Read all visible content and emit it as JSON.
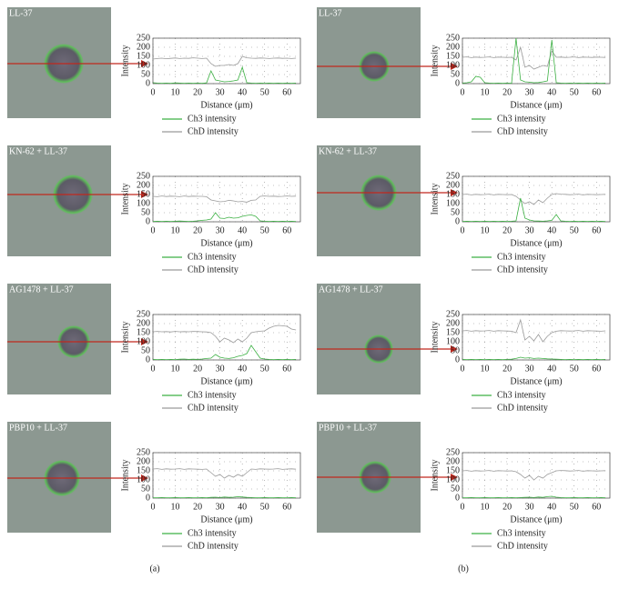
{
  "chart_data": [
    {
      "type": "line",
      "title": "LL-37",
      "xlabel": "Distance (μm)",
      "ylabel": "Intensity",
      "x": [
        0,
        2,
        4,
        6,
        8,
        10,
        12,
        14,
        16,
        18,
        20,
        22,
        24,
        26,
        28,
        30,
        32,
        34,
        36,
        38,
        40,
        42,
        44,
        46,
        48,
        50,
        52,
        54,
        56,
        58,
        60,
        62,
        64
      ],
      "xlim": [
        0,
        66
      ],
      "xticks": [
        0,
        10,
        20,
        30,
        40,
        50,
        60
      ],
      "ylim": [
        0,
        250
      ],
      "yticks": [
        0,
        50,
        100,
        150,
        200,
        250
      ],
      "grid": true,
      "series": [
        {
          "name": "Ch3 intensity",
          "color": "#3cb043",
          "values": [
            5,
            3,
            2,
            3,
            2,
            4,
            3,
            2,
            3,
            2,
            3,
            2,
            4,
            70,
            20,
            15,
            10,
            12,
            15,
            20,
            90,
            5,
            3,
            2,
            3,
            2,
            3,
            2,
            3,
            2,
            3,
            2,
            3
          ]
        },
        {
          "name": "ChD intensity",
          "color": "#9a9a9a",
          "values": [
            135,
            138,
            140,
            137,
            139,
            141,
            138,
            140,
            139,
            142,
            140,
            138,
            140,
            110,
            95,
            100,
            100,
            105,
            100,
            110,
            150,
            142,
            140,
            139,
            141,
            140,
            138,
            140,
            141,
            139,
            140,
            138,
            140
          ]
        }
      ]
    },
    {
      "type": "line",
      "title": "KN-62 + LL-37",
      "xlabel": "Distance (μm)",
      "ylabel": "Intensity",
      "x": [
        0,
        2,
        4,
        6,
        8,
        10,
        12,
        14,
        16,
        18,
        20,
        22,
        24,
        26,
        28,
        30,
        32,
        34,
        36,
        38,
        40,
        42,
        44,
        46,
        48,
        50,
        52,
        54,
        56,
        58,
        60,
        62,
        64
      ],
      "xlim": [
        0,
        66
      ],
      "xticks": [
        0,
        10,
        20,
        30,
        40,
        50,
        60
      ],
      "ylim": [
        0,
        250
      ],
      "yticks": [
        0,
        50,
        100,
        150,
        200,
        250
      ],
      "grid": true,
      "series": [
        {
          "name": "Ch3 intensity",
          "color": "#3cb043",
          "values": [
            2,
            3,
            2,
            3,
            2,
            3,
            4,
            3,
            2,
            3,
            5,
            8,
            10,
            15,
            50,
            20,
            18,
            25,
            20,
            22,
            30,
            35,
            38,
            30,
            5,
            3,
            2,
            3,
            2,
            3,
            2,
            3,
            2
          ]
        },
        {
          "name": "ChD intensity",
          "color": "#9a9a9a",
          "values": [
            140,
            138,
            142,
            139,
            141,
            140,
            138,
            142,
            139,
            141,
            140,
            140,
            138,
            120,
            115,
            110,
            112,
            118,
            115,
            110,
            112,
            108,
            118,
            120,
            140,
            142,
            140,
            141,
            139,
            140,
            142,
            140,
            141
          ]
        }
      ]
    },
    {
      "type": "line",
      "title": "AG1478 + LL-37",
      "xlabel": "Distance (μm)",
      "ylabel": "Intensity",
      "x": [
        0,
        2,
        4,
        6,
        8,
        10,
        12,
        14,
        16,
        18,
        20,
        22,
        24,
        26,
        28,
        30,
        32,
        34,
        36,
        38,
        40,
        42,
        44,
        46,
        48,
        50,
        52,
        54,
        56,
        58,
        60,
        62,
        64
      ],
      "xlim": [
        0,
        66
      ],
      "xticks": [
        0,
        10,
        20,
        30,
        40,
        50,
        60
      ],
      "ylim": [
        0,
        250
      ],
      "yticks": [
        0,
        50,
        100,
        150,
        200,
        250
      ],
      "grid": true,
      "series": [
        {
          "name": "Ch3 intensity",
          "color": "#3cb043",
          "values": [
            3,
            2,
            3,
            2,
            3,
            2,
            4,
            5,
            3,
            4,
            3,
            5,
            8,
            10,
            30,
            15,
            10,
            8,
            12,
            20,
            25,
            35,
            80,
            45,
            10,
            5,
            3,
            2,
            3,
            2,
            3,
            2,
            3
          ]
        },
        {
          "name": "ChD intensity",
          "color": "#9a9a9a",
          "values": [
            155,
            157,
            155,
            156,
            154,
            157,
            155,
            156,
            155,
            157,
            156,
            155,
            154,
            150,
            130,
            100,
            120,
            110,
            95,
            115,
            100,
            120,
            150,
            155,
            158,
            160,
            175,
            185,
            190,
            188,
            185,
            170,
            165
          ]
        }
      ]
    },
    {
      "type": "line",
      "title": "PBP10 + LL-37",
      "xlabel": "Distance (μm)",
      "ylabel": "Intensity",
      "x": [
        0,
        2,
        4,
        6,
        8,
        10,
        12,
        14,
        16,
        18,
        20,
        22,
        24,
        26,
        28,
        30,
        32,
        34,
        36,
        38,
        40,
        42,
        44,
        46,
        48,
        50,
        52,
        54,
        56,
        58,
        60,
        62,
        64
      ],
      "xlim": [
        0,
        66
      ],
      "xticks": [
        0,
        10,
        20,
        30,
        40,
        50,
        60
      ],
      "ylim": [
        0,
        250
      ],
      "yticks": [
        0,
        50,
        100,
        150,
        200,
        250
      ],
      "grid": true,
      "series": [
        {
          "name": "Ch3 intensity",
          "color": "#3cb043",
          "values": [
            2,
            2,
            3,
            2,
            2,
            3,
            2,
            2,
            3,
            2,
            2,
            3,
            2,
            4,
            5,
            3,
            6,
            4,
            5,
            8,
            6,
            4,
            3,
            2,
            2,
            3,
            2,
            2,
            3,
            2,
            2,
            3,
            2
          ]
        },
        {
          "name": "ChD intensity",
          "color": "#9a9a9a",
          "values": [
            160,
            162,
            158,
            161,
            159,
            160,
            162,
            158,
            161,
            160,
            159,
            158,
            160,
            140,
            120,
            130,
            110,
            125,
            115,
            130,
            120,
            140,
            160,
            158,
            161,
            160,
            159,
            160,
            162,
            158,
            160,
            161,
            159
          ]
        }
      ]
    },
    {
      "type": "line",
      "title": "LL-37",
      "xlabel": "Distance (μm)",
      "ylabel": "Intensity",
      "x": [
        0,
        2,
        4,
        6,
        8,
        10,
        12,
        14,
        16,
        18,
        20,
        22,
        24,
        26,
        28,
        30,
        32,
        34,
        36,
        38,
        40,
        42,
        44,
        46,
        48,
        50,
        52,
        54,
        56,
        58,
        60,
        62,
        64
      ],
      "xlim": [
        0,
        66
      ],
      "xticks": [
        0,
        10,
        20,
        30,
        40,
        50,
        60
      ],
      "ylim": [
        0,
        250
      ],
      "yticks": [
        0,
        50,
        100,
        150,
        200,
        250
      ],
      "grid": true,
      "series": [
        {
          "name": "Ch3 intensity",
          "color": "#3cb043",
          "values": [
            3,
            5,
            10,
            40,
            35,
            5,
            3,
            2,
            3,
            2,
            3,
            2,
            250,
            20,
            10,
            8,
            5,
            6,
            10,
            15,
            240,
            5,
            3,
            2,
            3,
            2,
            3,
            2,
            3,
            2,
            3,
            2,
            3
          ]
        },
        {
          "name": "ChD intensity",
          "color": "#9a9a9a",
          "values": [
            145,
            147,
            143,
            146,
            144,
            145,
            147,
            143,
            146,
            145,
            144,
            145,
            130,
            200,
            90,
            100,
            80,
            90,
            100,
            95,
            180,
            145,
            146,
            144,
            145,
            147,
            143,
            146,
            145,
            144,
            146,
            145,
            144
          ]
        }
      ]
    },
    {
      "type": "line",
      "title": "KN-62 + LL-37",
      "xlabel": "Distance (μm)",
      "ylabel": "Intensity",
      "x": [
        0,
        2,
        4,
        6,
        8,
        10,
        12,
        14,
        16,
        18,
        20,
        22,
        24,
        26,
        28,
        30,
        32,
        34,
        36,
        38,
        40,
        42,
        44,
        46,
        48,
        50,
        52,
        54,
        56,
        58,
        60,
        62,
        64
      ],
      "xlim": [
        0,
        66
      ],
      "xticks": [
        0,
        10,
        20,
        30,
        40,
        50,
        60
      ],
      "ylim": [
        0,
        250
      ],
      "yticks": [
        0,
        50,
        100,
        150,
        200,
        250
      ],
      "grid": true,
      "series": [
        {
          "name": "Ch3 intensity",
          "color": "#3cb043",
          "values": [
            2,
            3,
            2,
            3,
            2,
            3,
            2,
            3,
            2,
            3,
            2,
            3,
            5,
            130,
            20,
            10,
            5,
            4,
            3,
            5,
            8,
            40,
            5,
            3,
            2,
            3,
            2,
            3,
            2,
            3,
            2,
            3,
            2
          ]
        },
        {
          "name": "ChD intensity",
          "color": "#9a9a9a",
          "values": [
            150,
            152,
            148,
            151,
            149,
            150,
            152,
            148,
            151,
            150,
            149,
            150,
            140,
            120,
            100,
            110,
            95,
            120,
            105,
            130,
            150,
            155,
            152,
            151,
            149,
            150,
            152,
            148,
            151,
            150,
            149,
            150,
            151
          ]
        }
      ]
    },
    {
      "type": "line",
      "title": "AG1478 + LL-37",
      "xlabel": "Distance (μm)",
      "ylabel": "Intensity",
      "x": [
        0,
        2,
        4,
        6,
        8,
        10,
        12,
        14,
        16,
        18,
        20,
        22,
        24,
        26,
        28,
        30,
        32,
        34,
        36,
        38,
        40,
        42,
        44,
        46,
        48,
        50,
        52,
        54,
        56,
        58,
        60,
        62,
        64
      ],
      "xlim": [
        0,
        66
      ],
      "xticks": [
        0,
        10,
        20,
        30,
        40,
        50,
        60
      ],
      "ylim": [
        0,
        250
      ],
      "yticks": [
        0,
        50,
        100,
        150,
        200,
        250
      ],
      "grid": true,
      "series": [
        {
          "name": "Ch3 intensity",
          "color": "#3cb043",
          "values": [
            3,
            2,
            3,
            2,
            3,
            2,
            3,
            2,
            3,
            2,
            3,
            4,
            8,
            15,
            10,
            12,
            8,
            10,
            8,
            6,
            5,
            4,
            3,
            2,
            3,
            2,
            3,
            2,
            3,
            2,
            3,
            2,
            3
          ]
        },
        {
          "name": "ChD intensity",
          "color": "#9a9a9a",
          "values": [
            160,
            162,
            158,
            161,
            159,
            160,
            162,
            158,
            161,
            160,
            159,
            158,
            150,
            220,
            110,
            130,
            105,
            140,
            100,
            130,
            150,
            158,
            161,
            160,
            159,
            160,
            162,
            158,
            161,
            160,
            159,
            158,
            160
          ]
        }
      ]
    },
    {
      "type": "line",
      "title": "PBP10 + LL-37",
      "xlabel": "Distance (μm)",
      "ylabel": "Intensity",
      "x": [
        0,
        2,
        4,
        6,
        8,
        10,
        12,
        14,
        16,
        18,
        20,
        22,
        24,
        26,
        28,
        30,
        32,
        34,
        36,
        38,
        40,
        42,
        44,
        46,
        48,
        50,
        52,
        54,
        56,
        58,
        60,
        62,
        64
      ],
      "xlim": [
        0,
        66
      ],
      "xticks": [
        0,
        10,
        20,
        30,
        40,
        50,
        60
      ],
      "ylim": [
        0,
        250
      ],
      "yticks": [
        0,
        50,
        100,
        150,
        200,
        250
      ],
      "grid": true,
      "series": [
        {
          "name": "Ch3 intensity",
          "color": "#3cb043",
          "values": [
            2,
            2,
            3,
            2,
            2,
            3,
            2,
            2,
            3,
            2,
            2,
            3,
            2,
            3,
            4,
            5,
            3,
            6,
            4,
            8,
            10,
            5,
            3,
            2,
            2,
            3,
            2,
            2,
            3,
            2,
            2,
            3,
            2
          ]
        },
        {
          "name": "ChD intensity",
          "color": "#9a9a9a",
          "values": [
            150,
            152,
            148,
            151,
            149,
            150,
            152,
            148,
            151,
            150,
            149,
            150,
            145,
            130,
            110,
            125,
            100,
            120,
            110,
            130,
            140,
            150,
            152,
            151,
            149,
            150,
            152,
            148,
            151,
            150,
            149,
            150,
            151
          ]
        }
      ]
    }
  ],
  "panel_labels": [
    "(a)",
    "(b)"
  ]
}
